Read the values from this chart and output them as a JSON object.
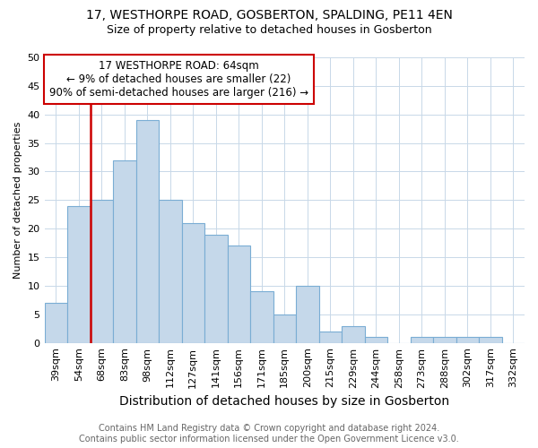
{
  "title": "17, WESTHORPE ROAD, GOSBERTON, SPALDING, PE11 4EN",
  "subtitle": "Size of property relative to detached houses in Gosberton",
  "xlabel": "Distribution of detached houses by size in Gosberton",
  "ylabel": "Number of detached properties",
  "categories": [
    "39sqm",
    "54sqm",
    "68sqm",
    "83sqm",
    "98sqm",
    "112sqm",
    "127sqm",
    "141sqm",
    "156sqm",
    "171sqm",
    "185sqm",
    "200sqm",
    "215sqm",
    "229sqm",
    "244sqm",
    "258sqm",
    "273sqm",
    "288sqm",
    "302sqm",
    "317sqm",
    "332sqm"
  ],
  "values": [
    7,
    24,
    25,
    32,
    39,
    25,
    21,
    19,
    17,
    9,
    5,
    10,
    2,
    3,
    1,
    0,
    1,
    1,
    1,
    1,
    0
  ],
  "bar_color": "#c5d8ea",
  "bar_edge_color": "#7aadd4",
  "property_label": "17 WESTHORPE ROAD: 64sqm",
  "annotation_line1": "← 9% of detached houses are smaller (22)",
  "annotation_line2": "90% of semi-detached houses are larger (216) →",
  "vline_color": "#cc0000",
  "vline_position": 2.0,
  "ylim": [
    0,
    50
  ],
  "yticks": [
    0,
    5,
    10,
    15,
    20,
    25,
    30,
    35,
    40,
    45,
    50
  ],
  "background_color": "#ffffff",
  "plot_bg_color": "#ffffff",
  "grid_color": "#c8d8e8",
  "footer_line1": "Contains HM Land Registry data © Crown copyright and database right 2024.",
  "footer_line2": "Contains public sector information licensed under the Open Government Licence v3.0.",
  "title_fontsize": 10,
  "subtitle_fontsize": 9,
  "xlabel_fontsize": 10,
  "ylabel_fontsize": 8,
  "tick_fontsize": 8,
  "annotation_fontsize": 8.5,
  "footer_fontsize": 7
}
